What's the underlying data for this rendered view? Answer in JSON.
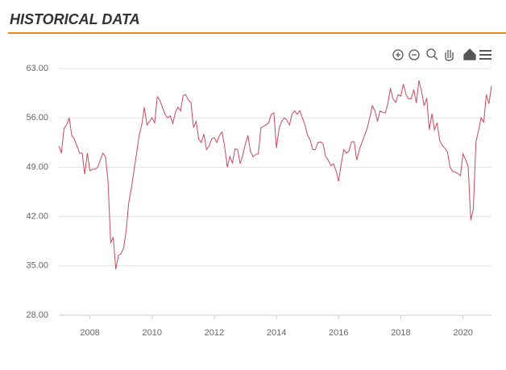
{
  "header": {
    "title": "HISTORICAL DATA"
  },
  "chart_data": {
    "type": "line",
    "color": "#c8485f",
    "grid": true,
    "xlim": [
      2007,
      2020.917
    ],
    "xticks": [
      2008,
      2010,
      2012,
      2014,
      2016,
      2018,
      2020
    ],
    "ylim": [
      28,
      63
    ],
    "yticks": [
      {
        "value": 28,
        "label": "28.00"
      },
      {
        "value": 35,
        "label": "35.00"
      },
      {
        "value": 42,
        "label": "42.00"
      },
      {
        "value": 49,
        "label": "49.00"
      },
      {
        "value": 56,
        "label": "56.00"
      },
      {
        "value": 63,
        "label": "63.00"
      }
    ],
    "x": [
      2007,
      2007.083,
      2007.167,
      2007.25,
      2007.333,
      2007.417,
      2007.5,
      2007.583,
      2007.667,
      2007.75,
      2007.833,
      2007.917,
      2008,
      2008.083,
      2008.167,
      2008.25,
      2008.333,
      2008.417,
      2008.5,
      2008.583,
      2008.667,
      2008.75,
      2008.833,
      2008.917,
      2009,
      2009.083,
      2009.167,
      2009.25,
      2009.333,
      2009.417,
      2009.5,
      2009.583,
      2009.667,
      2009.75,
      2009.833,
      2009.917,
      2010,
      2010.083,
      2010.167,
      2010.25,
      2010.333,
      2010.417,
      2010.5,
      2010.583,
      2010.667,
      2010.75,
      2010.833,
      2010.917,
      2011,
      2011.083,
      2011.167,
      2011.25,
      2011.333,
      2011.417,
      2011.5,
      2011.583,
      2011.667,
      2011.75,
      2011.833,
      2011.917,
      2012,
      2012.083,
      2012.167,
      2012.25,
      2012.333,
      2012.417,
      2012.5,
      2012.583,
      2012.667,
      2012.75,
      2012.833,
      2012.917,
      2013,
      2013.083,
      2013.167,
      2013.25,
      2013.333,
      2013.417,
      2013.5,
      2013.583,
      2013.667,
      2013.75,
      2013.833,
      2013.917,
      2014,
      2014.083,
      2014.167,
      2014.25,
      2014.333,
      2014.417,
      2014.5,
      2014.583,
      2014.667,
      2014.75,
      2014.833,
      2014.917,
      2015,
      2015.083,
      2015.167,
      2015.25,
      2015.333,
      2015.417,
      2015.5,
      2015.583,
      2015.667,
      2015.75,
      2015.833,
      2015.917,
      2016,
      2016.083,
      2016.167,
      2016.25,
      2016.333,
      2016.417,
      2016.5,
      2016.583,
      2016.667,
      2016.75,
      2016.833,
      2016.917,
      2017,
      2017.083,
      2017.167,
      2017.25,
      2017.333,
      2017.417,
      2017.5,
      2017.583,
      2017.667,
      2017.75,
      2017.833,
      2017.917,
      2018,
      2018.083,
      2018.167,
      2018.25,
      2018.333,
      2018.417,
      2018.5,
      2018.583,
      2018.667,
      2018.75,
      2018.833,
      2018.917,
      2019,
      2019.083,
      2019.167,
      2019.25,
      2019.333,
      2019.417,
      2019.5,
      2019.583,
      2019.667,
      2019.75,
      2019.833,
      2019.917,
      2020,
      2020.083,
      2020.167,
      2020.25,
      2020.333,
      2020.417,
      2020.5,
      2020.583,
      2020.667,
      2020.75,
      2020.833,
      2020.917
    ],
    "values": [
      52,
      51,
      54.5,
      55,
      56,
      53.5,
      53,
      52,
      51,
      51,
      48,
      51,
      48.5,
      48.7,
      48.7,
      49,
      50,
      51,
      50.5,
      47,
      38.3,
      39,
      34.5,
      36.5,
      36.7,
      37.5,
      40,
      44,
      46,
      48.5,
      51,
      53.5,
      55,
      57.5,
      55,
      55.5,
      56,
      55.3,
      59,
      58.5,
      57.5,
      56.5,
      56,
      56.3,
      55.2,
      56.8,
      57.5,
      57,
      59.2,
      59.3,
      58.5,
      58.2,
      54.6,
      55.5,
      53,
      52.5,
      53.7,
      51.5,
      52,
      53,
      53.2,
      52.5,
      53.5,
      54,
      52,
      49,
      50.5,
      49.6,
      51.6,
      51.5,
      49.5,
      50.7,
      52.3,
      53.5,
      51.2,
      50.5,
      50.8,
      50.9,
      54.6,
      54.8,
      55,
      55.3,
      56.5,
      56.7,
      51.7,
      54.5,
      55.5,
      56,
      55.7,
      55,
      56.5,
      57,
      56.5,
      57,
      56,
      55,
      53.5,
      52.9,
      51.5,
      51.5,
      52.5,
      52.6,
      52.3,
      50.5,
      50,
      49.2,
      49.5,
      48.5,
      47,
      49.5,
      51.5,
      51,
      51.3,
      52.6,
      52.6,
      50,
      51.5,
      52.5,
      53.5,
      54.5,
      56,
      57.7,
      57,
      55.5,
      57,
      56.8,
      56.7,
      58,
      60.2,
      58.7,
      58.2,
      59.3,
      59.1,
      60.8,
      59.3,
      58.7,
      58.7,
      60,
      58.1,
      61.3,
      59.8,
      57.7,
      58.8,
      54.3,
      56.6,
      54.3,
      55.3,
      52.8,
      52.1,
      51.7,
      51.2,
      49,
      48.4,
      48.3,
      48.1,
      47.8,
      50.9,
      50.1,
      49.1,
      41.5,
      43.1,
      52.6,
      54.2,
      56,
      55.4,
      59.3,
      58,
      60.5
    ]
  }
}
